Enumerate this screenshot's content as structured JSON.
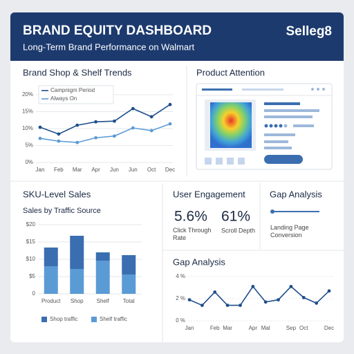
{
  "header": {
    "title": "BRAND EQUITY DASHBOARD",
    "subtitle": "Long-Term Brand Performance on Walmart",
    "logo": "Selleg8"
  },
  "panels": {
    "attention": {
      "title": "Product Attention"
    },
    "engagement": {
      "title": "User Engagement",
      "metrics": [
        {
          "value": "5.6%",
          "label": "Click Through Rate"
        },
        {
          "value": "61%",
          "label": "Scroll Depth"
        }
      ]
    },
    "gap": {
      "title": "Gap Analysis",
      "metric": "Landing Page Conversion"
    }
  },
  "chart_data": [
    {
      "type": "line",
      "title": "Brand Shop & Shelf Trends",
      "categories": [
        "Jan",
        "Feb",
        "Mar",
        "Apr",
        "Jun",
        "Jun",
        "Oct",
        "Dec"
      ],
      "series": [
        {
          "name": "Campnigm Period",
          "color": "#1f4e8c",
          "values": [
            10.4,
            8.4,
            11,
            12,
            12.2,
            15.9,
            13.5,
            17.1
          ]
        },
        {
          "name": "Always On",
          "color": "#5b9bd5",
          "values": [
            7.1,
            6.3,
            5.9,
            7.3,
            7.8,
            10.2,
            9.4,
            11.4
          ]
        }
      ],
      "ylim": [
        0,
        20
      ],
      "yticks": [
        {
          "value": 0,
          "label": "0%"
        },
        {
          "value": 5,
          "label": "5%"
        },
        {
          "value": 10,
          "label": "10%"
        },
        {
          "value": 15,
          "label": "15%"
        },
        {
          "value": 20,
          "label": "20%"
        }
      ],
      "grid": true
    },
    {
      "type": "stacked_bar",
      "title": "SKU-Level Sales",
      "subtitle": "Sales by Traffic Source",
      "categories": [
        "Product",
        "Shop",
        "Shelf",
        "Total"
      ],
      "series": [
        {
          "name": "Shop traffic",
          "color": "#3a6eb0",
          "values": [
            5.4,
            9.6,
            2.4,
            5.6
          ]
        },
        {
          "name": "Shelf traffic",
          "color": "#5b9bd5",
          "values": [
            8,
            7.2,
            9.6,
            5.6
          ]
        }
      ],
      "ylim": [
        0,
        20
      ],
      "yticks": [
        0,
        {
          "value": 5,
          "label": "$5"
        },
        {
          "value": 10,
          "label": "$10"
        },
        {
          "value": 15,
          "label": "$15"
        },
        {
          "value": 20,
          "label": "$20"
        }
      ],
      "grid": true
    },
    {
      "type": "line",
      "title": "Gap Analysis",
      "categories": [
        "Jan",
        null,
        "Feb",
        "Mar",
        null,
        "Apr",
        "Mal",
        null,
        "Sep",
        "Oct",
        null,
        "Dec"
      ],
      "series": [
        {
          "color": "#1f4e8c",
          "values": [
            1.9,
            1.4,
            2.6,
            1.4,
            1.4,
            3.1,
            1.7,
            1.9,
            3.1,
            2.1,
            1.6,
            2.7
          ]
        }
      ],
      "ylim": [
        0,
        4
      ],
      "yticks": [
        {
          "value": 0,
          "label": "0 %"
        },
        {
          "value": 2,
          "label": "2 %"
        },
        {
          "value": 4,
          "label": "4 %"
        }
      ],
      "grid": true
    }
  ]
}
